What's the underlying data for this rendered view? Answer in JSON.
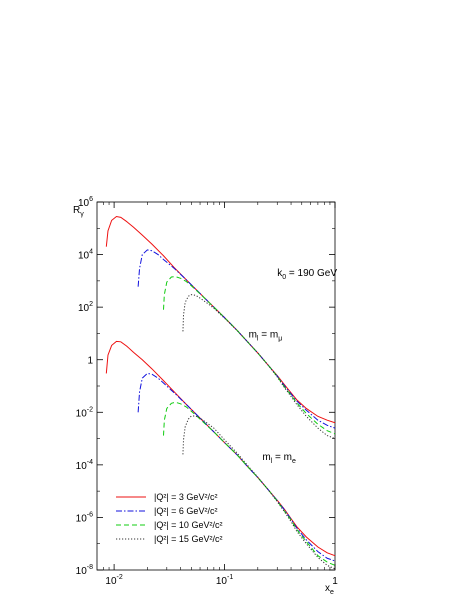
{
  "chart_data": {
    "type": "line",
    "xscale": "log",
    "yscale": "log",
    "xlim": [
      0.007,
      1
    ],
    "ylim": [
      1e-08,
      1000000.0
    ],
    "xlabel": {
      "main": "x",
      "sub": "e"
    },
    "ylabel": {
      "main": "R",
      "sub": "γ"
    },
    "x_ticks": [
      {
        "value": 0.01,
        "base": "10",
        "exp": "-2"
      },
      {
        "value": 0.1,
        "base": "10",
        "exp": "-1"
      },
      {
        "value": 1,
        "base": "1",
        "exp": ""
      }
    ],
    "y_ticks": [
      {
        "value": 1000000.0,
        "base": "10",
        "exp": "6"
      },
      {
        "value": 10000.0,
        "base": "10",
        "exp": "4"
      },
      {
        "value": 100.0,
        "base": "10",
        "exp": "2"
      },
      {
        "value": 1,
        "base": "1",
        "exp": ""
      },
      {
        "value": 0.01,
        "base": "10",
        "exp": "-2"
      },
      {
        "value": 0.0001,
        "base": "10",
        "exp": "-4"
      },
      {
        "value": 1e-06,
        "base": "10",
        "exp": "-6"
      },
      {
        "value": 1e-08,
        "base": "10",
        "exp": "-8"
      }
    ],
    "annotations": [
      {
        "id": "k0",
        "text": "k",
        "sub": "0",
        "rest": " = 190 GeV",
        "x": 0.3,
        "y": 1500
      },
      {
        "id": "upper-mass",
        "text": "m",
        "sub": "l",
        "rest": " = m",
        "sub2": "μ",
        "x": 0.165,
        "y": 7
      },
      {
        "id": "lower-mass",
        "text": "m",
        "sub": "l",
        "rest": " = m",
        "sub2": "e",
        "x": 0.22,
        "y": 0.00015
      }
    ],
    "legend": {
      "placement": "bottom-left"
    },
    "series": [
      {
        "name": "|Q²| = 3 GeV²/c²",
        "color": "#ee1111",
        "dash": "solid",
        "groups": [
          {
            "x": [
              0.0085,
              0.0088,
              0.0095,
              0.0105,
              0.0115,
              0.013,
              0.015,
              0.018,
              0.022,
              0.028,
              0.035,
              0.045,
              0.06,
              0.08,
              0.1,
              0.13,
              0.16,
              0.2,
              0.25,
              0.3,
              0.35,
              0.4,
              0.45,
              0.55,
              0.7,
              0.85,
              1.0
            ],
            "y": [
              20000,
              80000,
              200000,
              280000,
              260000,
              180000,
              110000,
              55000,
              25000,
              9000,
              3200,
              1100,
              330,
              100,
              40,
              13,
              5,
              1.8,
              0.6,
              0.25,
              0.11,
              0.055,
              0.03,
              0.014,
              0.007,
              0.005,
              0.004
            ]
          },
          {
            "x": [
              0.0085,
              0.0088,
              0.0095,
              0.0105,
              0.0115,
              0.013,
              0.015,
              0.018,
              0.022,
              0.028,
              0.035,
              0.045,
              0.06,
              0.08,
              0.1,
              0.13,
              0.16,
              0.2,
              0.25,
              0.3,
              0.35,
              0.4,
              0.45,
              0.55,
              0.7,
              0.85,
              1.0
            ],
            "y": [
              0.3,
              1.5,
              3.5,
              5,
              4.8,
              3.3,
              1.9,
              1.0,
              0.45,
              0.16,
              0.06,
              0.02,
              0.006,
              0.0018,
              0.0007,
              0.00024,
              9e-05,
              3.3e-05,
              1.1e-05,
              4.5e-06,
              2e-06,
              9e-07,
              4.5e-07,
              1.8e-07,
              7.5e-08,
              4.5e-08,
              3.5e-08
            ]
          }
        ]
      },
      {
        "name": "|Q²| = 6 GeV²/c²",
        "color": "#1111dd",
        "dash": "6,2,1.5,2",
        "groups": [
          {
            "x": [
              0.0165,
              0.017,
              0.018,
              0.02,
              0.022,
              0.025,
              0.028,
              0.035,
              0.045,
              0.06,
              0.08,
              0.1,
              0.13,
              0.16,
              0.2,
              0.25,
              0.3,
              0.35,
              0.4,
              0.45,
              0.55,
              0.7,
              0.85,
              1.0
            ],
            "y": [
              600,
              3000,
              10000,
              15000,
              14000,
              10000,
              6500,
              3000,
              1100,
              330,
              100,
              40,
              13,
              5,
              1.8,
              0.6,
              0.24,
              0.1,
              0.05,
              0.027,
              0.012,
              0.005,
              0.0032,
              0.0025
            ]
          },
          {
            "x": [
              0.0165,
              0.017,
              0.018,
              0.02,
              0.022,
              0.025,
              0.028,
              0.035,
              0.045,
              0.06,
              0.08,
              0.1,
              0.13,
              0.16,
              0.2,
              0.25,
              0.3,
              0.35,
              0.4,
              0.45,
              0.55,
              0.7,
              0.85,
              1.0
            ],
            "y": [
              0.01,
              0.06,
              0.2,
              0.3,
              0.28,
              0.2,
              0.13,
              0.055,
              0.02,
              0.006,
              0.0018,
              0.0007,
              0.00024,
              9e-05,
              3.3e-05,
              1.1e-05,
              4.4e-06,
              1.9e-06,
              8.5e-07,
              4e-07,
              1.4e-07,
              5e-08,
              2.8e-08,
              2.2e-08
            ]
          }
        ]
      },
      {
        "name": "|Q²| = 10 GeV²/c²",
        "color": "#11cc11",
        "dash": "5,3",
        "groups": [
          {
            "x": [
              0.028,
              0.0285,
              0.03,
              0.033,
              0.036,
              0.04,
              0.045,
              0.05,
              0.06,
              0.08,
              0.1,
              0.13,
              0.16,
              0.2,
              0.25,
              0.3,
              0.35,
              0.4,
              0.45,
              0.55,
              0.7,
              0.85,
              1.0
            ],
            "y": [
              80,
              300,
              900,
              1400,
              1450,
              1250,
              950,
              650,
              320,
              100,
              40,
              13,
              5,
              1.8,
              0.6,
              0.23,
              0.09,
              0.045,
              0.023,
              0.009,
              0.0035,
              0.002,
              0.0015
            ]
          },
          {
            "x": [
              0.028,
              0.0285,
              0.03,
              0.033,
              0.036,
              0.04,
              0.045,
              0.05,
              0.06,
              0.08,
              0.1,
              0.13,
              0.16,
              0.2,
              0.25,
              0.3,
              0.35,
              0.4,
              0.45,
              0.55,
              0.7,
              0.85,
              1.0
            ],
            "y": [
              0.0013,
              0.005,
              0.014,
              0.022,
              0.024,
              0.021,
              0.016,
              0.011,
              0.0055,
              0.0018,
              0.0007,
              0.00024,
              9e-05,
              3.3e-05,
              1.1e-05,
              4.2e-06,
              1.7e-06,
              8e-07,
              3.5e-07,
              1.2e-07,
              3.5e-08,
              2e-08,
              1.5e-08
            ]
          }
        ]
      },
      {
        "name": "|Q²| = 15 GeV²/c²",
        "color": "#333333",
        "dash": "1.2,1.8",
        "groups": [
          {
            "x": [
              0.042,
              0.0425,
              0.044,
              0.047,
              0.05,
              0.055,
              0.06,
              0.07,
              0.08,
              0.1,
              0.13,
              0.16,
              0.2,
              0.25,
              0.3,
              0.35,
              0.4,
              0.45,
              0.55,
              0.7,
              0.85,
              1.0
            ],
            "y": [
              12,
              50,
              150,
              260,
              300,
              280,
              220,
              140,
              90,
              38,
              13,
              5,
              1.8,
              0.6,
              0.22,
              0.085,
              0.04,
              0.02,
              0.007,
              0.0025,
              0.0013,
              0.001
            ]
          },
          {
            "x": [
              0.042,
              0.0425,
              0.044,
              0.047,
              0.05,
              0.055,
              0.06,
              0.07,
              0.08,
              0.1,
              0.13,
              0.16,
              0.2,
              0.25,
              0.3,
              0.35,
              0.4,
              0.45,
              0.55,
              0.7,
              0.85,
              1.0
            ],
            "y": [
              0.00025,
              0.0009,
              0.0028,
              0.0055,
              0.0072,
              0.0072,
              0.006,
              0.0038,
              0.0025,
              0.0009,
              0.00028,
              0.0001,
              3.4e-05,
              1.1e-05,
              4e-06,
              1.6e-06,
              7e-07,
              3e-07,
              1e-07,
              3e-08,
              1.5e-08,
              1.1e-08
            ]
          }
        ]
      }
    ]
  }
}
